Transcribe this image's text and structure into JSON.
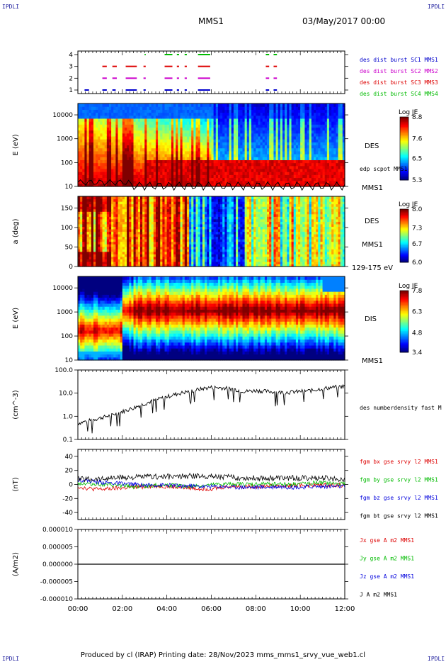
{
  "header": {
    "corner_label": "IPDLI",
    "spacecraft": "MMS1",
    "datetime": "03/May/2017 00:00"
  },
  "footer": {
    "text": "Produced by cl (IRAP)   Printing date: 28/Nov/2023   mms_mms1_srvy_vue_web1.cl"
  },
  "colors": {
    "mms1": "#0000cc",
    "mms2": "#cc00cc",
    "mms3": "#dd0000",
    "mms4": "#00bb00",
    "bx": "#dd0000",
    "by": "#00bb00",
    "bz": "#0000dd",
    "bt": "#000000"
  },
  "chart_data": [
    {
      "type": "timeline",
      "name": "burst-availability",
      "yticks": [
        "1",
        "2",
        "3",
        "4"
      ],
      "xlim": [
        "00:00",
        "12:00"
      ],
      "series": [
        {
          "name": "des dist burst SC1 MMS1",
          "row": 1,
          "intervals": [
            [
              0.3,
              0.5
            ],
            [
              1.1,
              1.3
            ],
            [
              1.55,
              1.7
            ],
            [
              2.15,
              2.65
            ],
            [
              2.95,
              3.05
            ],
            [
              3.9,
              4.25
            ],
            [
              4.45,
              4.55
            ],
            [
              4.8,
              4.9
            ],
            [
              5.4,
              5.95
            ],
            [
              8.45,
              8.6
            ],
            [
              8.8,
              8.95
            ]
          ]
        },
        {
          "name": "des dist burst SC2 MMS2",
          "row": 2,
          "intervals": [
            [
              1.1,
              1.3
            ],
            [
              1.55,
              1.75
            ],
            [
              2.15,
              2.65
            ],
            [
              2.95,
              3.05
            ],
            [
              3.9,
              4.25
            ],
            [
              4.45,
              4.55
            ],
            [
              4.8,
              4.9
            ],
            [
              5.4,
              5.95
            ],
            [
              8.45,
              8.6
            ],
            [
              8.8,
              8.95
            ]
          ]
        },
        {
          "name": "des dist burst SC3 MMS3",
          "row": 3,
          "intervals": [
            [
              1.1,
              1.3
            ],
            [
              1.55,
              1.75
            ],
            [
              2.15,
              2.65
            ],
            [
              2.95,
              3.05
            ],
            [
              3.9,
              4.25
            ],
            [
              4.45,
              4.55
            ],
            [
              4.8,
              4.9
            ],
            [
              5.4,
              5.95
            ],
            [
              8.45,
              8.6
            ],
            [
              8.8,
              8.95
            ]
          ]
        },
        {
          "name": "des dist burst SC4 MMS4",
          "row": 4,
          "intervals": [
            [
              3.0,
              3.05
            ],
            [
              3.9,
              4.25
            ],
            [
              4.45,
              4.55
            ],
            [
              4.8,
              4.9
            ],
            [
              5.4,
              5.95
            ],
            [
              8.45,
              8.6
            ],
            [
              8.8,
              8.95
            ]
          ]
        }
      ]
    },
    {
      "type": "heatmap",
      "name": "des-energy-spectrogram",
      "ylabel": "E (eV)",
      "yscale": "log",
      "ylim": [
        10,
        30000
      ],
      "yticks": [
        "10",
        "100",
        "1000",
        "10000"
      ],
      "label": "DES",
      "sc_label": "MMS1",
      "overlay_label": "edp scpot MMS1",
      "colorbar": {
        "title": "Log JE",
        "ticks": [
          "5.3",
          "6.5",
          "7.6",
          "8.8"
        ],
        "range": [
          5.3,
          8.8
        ]
      }
    },
    {
      "type": "heatmap",
      "name": "des-pitch-angle",
      "ylabel": "a (deg)",
      "ylim": [
        0,
        180
      ],
      "yticks": [
        "0",
        "50",
        "100",
        "150"
      ],
      "label": "DES",
      "sc_label": "MMS1",
      "energy_range": "129-175 eV",
      "colorbar": {
        "title": "Log JE",
        "ticks": [
          "6.0",
          "6.7",
          "7.3",
          "8.0"
        ],
        "range": [
          6.0,
          8.0
        ]
      }
    },
    {
      "type": "heatmap",
      "name": "dis-energy-spectrogram",
      "ylabel": "E (eV)",
      "yscale": "log",
      "ylim": [
        10,
        30000
      ],
      "yticks": [
        "10",
        "100",
        "1000",
        "10000"
      ],
      "label": "DIS",
      "sc_label": "MMS1",
      "colorbar": {
        "title": "Log JE",
        "ticks": [
          "3.4",
          "4.8",
          "6.3",
          "7.8"
        ],
        "range": [
          3.4,
          7.8
        ]
      }
    },
    {
      "type": "line",
      "name": "electron-density",
      "ylabel": "(cm^-3)",
      "yscale": "log",
      "ylim": [
        0.1,
        100
      ],
      "yticks": [
        "0.1",
        "1.0",
        "10.0",
        "100.0"
      ],
      "series": [
        {
          "name": "des numberdensity fast M"
        }
      ],
      "x": [
        0,
        0.5,
        1,
        1.5,
        2,
        2.5,
        3,
        3.5,
        4,
        4.5,
        5,
        5.5,
        6,
        6.5,
        7,
        7.5,
        8,
        8.5,
        9,
        9.5,
        10,
        10.5,
        11,
        11.5,
        12
      ],
      "values": [
        0.5,
        0.65,
        0.85,
        1.1,
        1.6,
        2.3,
        3.5,
        5.0,
        7.0,
        9.5,
        12.0,
        15.0,
        18.0,
        17.0,
        15.0,
        12.0,
        13.0,
        12.0,
        11.0,
        11.0,
        12.0,
        13.0,
        16.0,
        18.0,
        20.0
      ]
    },
    {
      "type": "line",
      "name": "magnetic-field",
      "ylabel": "(nT)",
      "ylim": [
        -50,
        50
      ],
      "yticks": [
        "-40",
        "-20",
        "0",
        "20",
        "40"
      ],
      "x": [
        0,
        0.5,
        1,
        1.5,
        2,
        2.5,
        3,
        3.5,
        4,
        4.5,
        5,
        5.5,
        6,
        6.5,
        7,
        7.5,
        8,
        8.5,
        9,
        9.5,
        10,
        10.5,
        11,
        11.5,
        12
      ],
      "series": [
        {
          "name": "fgm bx gse srvy l2 MMS1",
          "values": [
            -3,
            -6,
            -7,
            -6,
            -5,
            -4,
            -3,
            -2,
            -3,
            -4,
            -5,
            -6,
            -6,
            -4,
            -2,
            -3,
            -3,
            -2,
            -2,
            -2,
            -1,
            -1,
            -1,
            -1,
            -1
          ]
        },
        {
          "name": "fgm by gse srvy l2 MMS1",
          "values": [
            2,
            1,
            0,
            -1,
            -2,
            -3,
            -2,
            -1,
            -1,
            -2,
            -3,
            -2,
            -1,
            0,
            1,
            0,
            0,
            1,
            1,
            0,
            1,
            2,
            2,
            1,
            1
          ]
        },
        {
          "name": "fgm bz gse srvy l2 MMS1",
          "values": [
            7,
            5,
            3,
            2,
            1,
            0,
            -1,
            -1,
            -1,
            -2,
            -2,
            -3,
            -3,
            -3,
            -4,
            -4,
            -4,
            -4,
            -3,
            -4,
            -4,
            -3,
            -3,
            -3,
            -3
          ]
        },
        {
          "name": "fgm bt gse srvy l2 MMS1",
          "values": [
            8,
            8,
            8,
            9,
            10,
            10,
            11,
            11,
            11,
            11,
            12,
            12,
            12,
            11,
            10,
            9,
            9,
            9,
            9,
            9,
            9,
            9,
            9,
            8,
            8
          ]
        }
      ]
    },
    {
      "type": "line",
      "name": "current-density",
      "ylabel": "(A/m2)",
      "ylim": [
        -1e-05,
        1e-05
      ],
      "yticks": [
        "-0.000010",
        "-0.000005",
        "0.000000",
        "0.000005",
        "0.000010"
      ],
      "x": [
        0,
        12
      ],
      "series": [
        {
          "name": "Jx gse A m2 MMS1",
          "values": [
            0,
            0
          ]
        },
        {
          "name": "Jy gse A m2 MMS1",
          "values": [
            0,
            0
          ]
        },
        {
          "name": "Jz gse A m2 MMS1",
          "values": [
            0,
            0
          ]
        },
        {
          "name": "J A m2 MMS1",
          "values": [
            0,
            0
          ]
        }
      ]
    }
  ],
  "xaxis": {
    "ticks": [
      "00:00",
      "02:00",
      "04:00",
      "06:00",
      "08:00",
      "10:00",
      "12:00"
    ]
  }
}
